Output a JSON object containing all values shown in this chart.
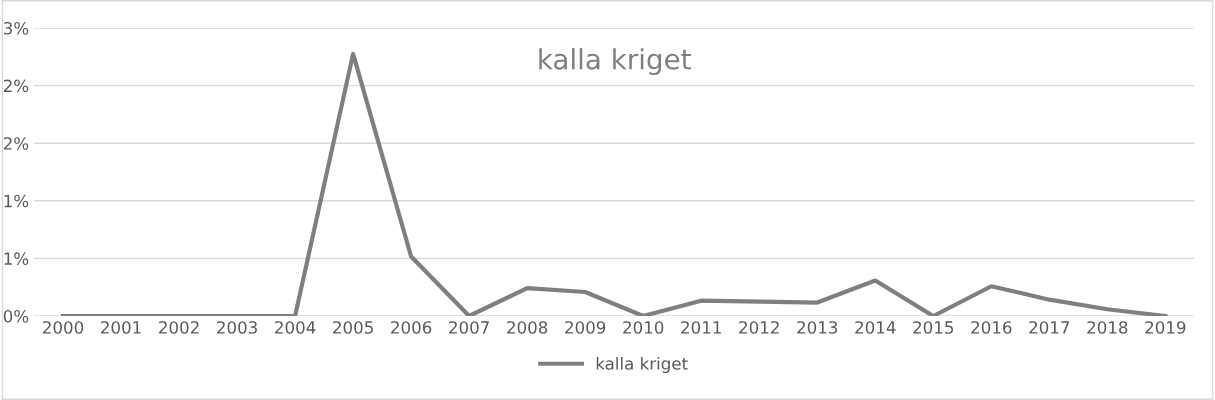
{
  "chart_data": {
    "type": "line",
    "title": "kalla kriget",
    "categories": [
      "2000",
      "2001",
      "2002",
      "2003",
      "2004",
      "2005",
      "2006",
      "2007",
      "2008",
      "2009",
      "2010",
      "2011",
      "2012",
      "2013",
      "2014",
      "2015",
      "2016",
      "2017",
      "2018",
      "2019"
    ],
    "series": [
      {
        "name": "kalla kriget",
        "color": "#7f7f7f",
        "values": [
          0,
          0,
          0,
          0,
          0,
          2.73,
          0.62,
          0,
          0.29,
          0.25,
          0,
          0.16,
          0.15,
          0.14,
          0.37,
          0,
          0.31,
          0.17,
          0.07,
          0
        ]
      }
    ],
    "ylim": [
      0,
      3.0
    ],
    "yticks": [
      {
        "value": 0,
        "label": "0%"
      },
      {
        "value": 0.6,
        "label": "1%"
      },
      {
        "value": 1.2,
        "label": "1%"
      },
      {
        "value": 1.8,
        "label": "2%"
      },
      {
        "value": 2.4,
        "label": "2%"
      },
      {
        "value": 3.0,
        "label": "3%"
      }
    ],
    "grid": "y",
    "legend": "bottom",
    "marker": "none",
    "line_style": "solid"
  }
}
